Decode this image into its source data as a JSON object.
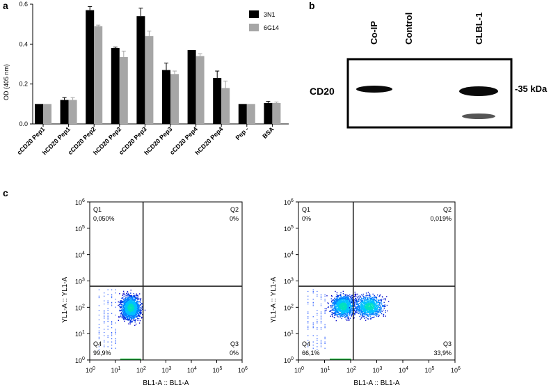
{
  "panel_labels": {
    "a": "a",
    "b": "b",
    "c": "c"
  },
  "chart_data": [
    {
      "panel": "a",
      "type": "bar",
      "title": "",
      "ylabel": "OD (405 nm)",
      "xlabel": "",
      "ylim": [
        0,
        0.6
      ],
      "yticks": [
        "0.0",
        "0.2",
        "0.4",
        "0.6"
      ],
      "categories": [
        "cCD20 Pep1",
        "hCD20 Pep1",
        "cCD20 Pep2",
        "hCD20 Pep2",
        "cCD20 Pep3",
        "hCD20 Pep3",
        "cCD20 Pep4",
        "hCD20 Pep4",
        "Pep -",
        "BSA"
      ],
      "series": [
        {
          "name": "3N1",
          "color": "#000000",
          "values": [
            0.1,
            0.12,
            0.57,
            0.38,
            0.54,
            0.27,
            0.37,
            0.23,
            0.1,
            0.105
          ],
          "errors": [
            0.0,
            0.012,
            0.018,
            0.005,
            0.04,
            0.035,
            0.0,
            0.035,
            0.0,
            0.008
          ]
        },
        {
          "name": "6G14",
          "color": "#a6a6a6",
          "values": [
            0.1,
            0.12,
            0.49,
            0.335,
            0.44,
            0.25,
            0.34,
            0.18,
            0.1,
            0.105
          ],
          "errors": [
            0.0,
            0.012,
            0.005,
            0.03,
            0.025,
            0.015,
            0.012,
            0.035,
            0.0,
            0.005
          ]
        }
      ]
    },
    {
      "panel": "c-left",
      "type": "scatter",
      "xlabel": "BL1-A :: BL1-A",
      "ylabel": "YL1-A :: YL1-A",
      "x_ticks": [
        "10",
        "10",
        "10",
        "10",
        "10",
        "10",
        "10"
      ],
      "x_tick_exponents": [
        "0",
        "1",
        "2",
        "3",
        "4",
        "5",
        "6"
      ],
      "y_ticks": [
        "10",
        "10",
        "10",
        "10",
        "10",
        "10",
        "10"
      ],
      "y_tick_exponents": [
        "0",
        "1",
        "2",
        "3",
        "4",
        "5",
        "6"
      ],
      "quadrants": [
        {
          "name": "Q1",
          "value": "0,050%"
        },
        {
          "name": "Q2",
          "value": "0%"
        },
        {
          "name": "Q3",
          "value": "0%"
        },
        {
          "name": "Q4",
          "value": "99,9%"
        }
      ],
      "gate_x": 2.1,
      "gate_y": 2.8
    },
    {
      "panel": "c-right",
      "type": "scatter",
      "xlabel": "BL1-A :: BL1-A",
      "ylabel": "YL1-A :: YL1-A",
      "x_ticks": [
        "10",
        "10",
        "10",
        "10",
        "10",
        "10",
        "10"
      ],
      "x_tick_exponents": [
        "0",
        "1",
        "2",
        "3",
        "4",
        "5",
        "6"
      ],
      "y_ticks": [
        "10",
        "10",
        "10",
        "10",
        "10",
        "10",
        "10"
      ],
      "y_tick_exponents": [
        "0",
        "1",
        "2",
        "3",
        "4",
        "5",
        "6"
      ],
      "quadrants": [
        {
          "name": "Q1",
          "value": "0%"
        },
        {
          "name": "Q2",
          "value": "0,019%"
        },
        {
          "name": "Q3",
          "value": "33,9%"
        },
        {
          "name": "Q4",
          "value": "66,1%"
        }
      ],
      "gate_x": 2.1,
      "gate_y": 2.8
    }
  ],
  "blot": {
    "lanes": [
      "Co-IP",
      "Control",
      "CLBL-1"
    ],
    "row_label": "CD20",
    "marker": "-35 kDa"
  }
}
